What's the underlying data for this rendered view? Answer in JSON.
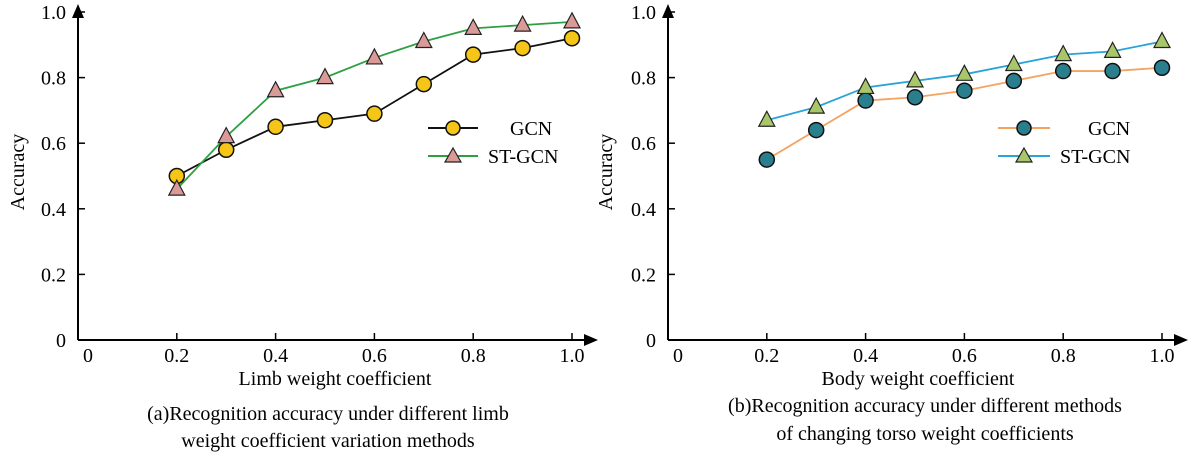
{
  "chart_data": [
    {
      "type": "line",
      "xlabel": "Limb weight coefficient",
      "ylabel": "Accuracy",
      "caption_lines": [
        "(a)Recognition accuracy under different limb",
        "weight coefficient variation methods"
      ],
      "x_ticks": [
        "0",
        "0.2",
        "0.4",
        "0.6",
        "0.8",
        "1.0"
      ],
      "y_ticks": [
        "0",
        "0.2",
        "0.4",
        "0.6",
        "0.8",
        "1.0"
      ],
      "xlim": [
        0,
        1.0
      ],
      "ylim": [
        0,
        1.0
      ],
      "legend_position": "right-middle",
      "series": [
        {
          "name": "GCN",
          "marker": "circle",
          "line_color": "#111111",
          "marker_fill": "#f5c518",
          "x": [
            0.2,
            0.3,
            0.4,
            0.5,
            0.6,
            0.7,
            0.8,
            0.9,
            1.0
          ],
          "values": [
            0.5,
            0.58,
            0.65,
            0.67,
            0.69,
            0.78,
            0.87,
            0.89,
            0.92
          ]
        },
        {
          "name": "ST-GCN",
          "marker": "triangle",
          "line_color": "#2ea043",
          "marker_fill": "#d99a98",
          "x": [
            0.2,
            0.3,
            0.4,
            0.5,
            0.6,
            0.7,
            0.8,
            0.9,
            1.0
          ],
          "values": [
            0.46,
            0.62,
            0.76,
            0.8,
            0.86,
            0.91,
            0.95,
            0.96,
            0.97
          ]
        }
      ]
    },
    {
      "type": "line",
      "xlabel": "Body weight coefficient",
      "ylabel": "Accuracy",
      "caption_lines": [
        "(b)Recognition accuracy under different methods",
        "of changing torso weight coefficients"
      ],
      "x_ticks": [
        "0",
        "0.2",
        "0.4",
        "0.6",
        "0.8",
        "1.0"
      ],
      "y_ticks": [
        "0",
        "0.2",
        "0.4",
        "0.6",
        "0.8",
        "1.0"
      ],
      "xlim": [
        0,
        1.0
      ],
      "ylim": [
        0,
        1.0
      ],
      "legend_position": "right-middle",
      "series": [
        {
          "name": "GCN",
          "marker": "circle",
          "line_color": "#f4a460",
          "marker_fill": "#2a7f8f",
          "x": [
            0.2,
            0.3,
            0.4,
            0.5,
            0.6,
            0.7,
            0.8,
            0.9,
            1.0
          ],
          "values": [
            0.55,
            0.64,
            0.73,
            0.74,
            0.76,
            0.79,
            0.82,
            0.82,
            0.83
          ]
        },
        {
          "name": "ST-GCN",
          "marker": "triangle",
          "line_color": "#29a3d8",
          "marker_fill": "#a8c76a",
          "x": [
            0.2,
            0.3,
            0.4,
            0.5,
            0.6,
            0.7,
            0.8,
            0.9,
            1.0
          ],
          "values": [
            0.67,
            0.71,
            0.77,
            0.79,
            0.81,
            0.84,
            0.87,
            0.88,
            0.91
          ]
        }
      ]
    }
  ]
}
